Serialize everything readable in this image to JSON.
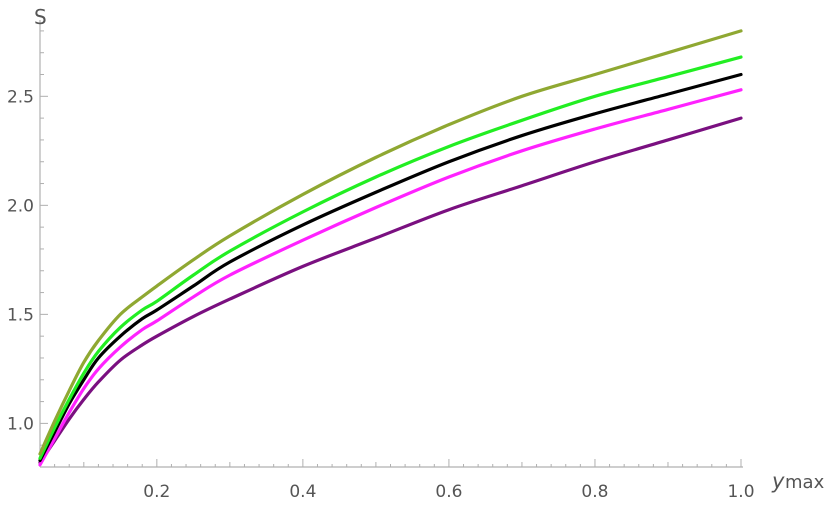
{
  "chart_data": {
    "type": "line",
    "title": "",
    "xlabel": "y",
    "xlabel_sub": "max",
    "ylabel": "S",
    "xlim": [
      0.04,
      1.0
    ],
    "ylim": [
      0.8,
      2.85
    ],
    "x_ticks": [
      0.2,
      0.4,
      0.6,
      0.8,
      1.0
    ],
    "x_tick_labels": [
      "0.2",
      "0.4",
      "0.6",
      "0.8",
      "1.0"
    ],
    "y_ticks": [
      1.0,
      1.5,
      2.0,
      2.5
    ],
    "y_tick_labels": [
      "1.0",
      "1.5",
      "2.0",
      "2.5"
    ],
    "grid": false,
    "legend": "none",
    "x": [
      0.04,
      0.06,
      0.08,
      0.1,
      0.12,
      0.15,
      0.18,
      0.2,
      0.25,
      0.3,
      0.4,
      0.5,
      0.6,
      0.7,
      0.8,
      0.9,
      1.0
    ],
    "series": [
      {
        "color": "#8fa832",
        "values": [
          0.86,
          1.01,
          1.15,
          1.28,
          1.38,
          1.5,
          1.58,
          1.63,
          1.75,
          1.86,
          2.05,
          2.22,
          2.37,
          2.5,
          2.6,
          2.7,
          2.8
        ]
      },
      {
        "color": "#22ee22",
        "values": [
          0.84,
          0.98,
          1.11,
          1.23,
          1.33,
          1.44,
          1.52,
          1.56,
          1.68,
          1.79,
          1.97,
          2.13,
          2.27,
          2.39,
          2.5,
          2.59,
          2.68
        ]
      },
      {
        "color": "#000000",
        "values": [
          0.83,
          0.96,
          1.09,
          1.2,
          1.3,
          1.4,
          1.48,
          1.52,
          1.63,
          1.74,
          1.91,
          2.06,
          2.2,
          2.32,
          2.42,
          2.51,
          2.6
        ]
      },
      {
        "color": "#ff22ff",
        "values": [
          0.81,
          0.93,
          1.05,
          1.16,
          1.25,
          1.35,
          1.43,
          1.47,
          1.58,
          1.68,
          1.84,
          1.99,
          2.13,
          2.25,
          2.35,
          2.44,
          2.53
        ]
      },
      {
        "color": "#7a1080",
        "values": [
          0.82,
          0.92,
          1.02,
          1.11,
          1.19,
          1.29,
          1.36,
          1.4,
          1.49,
          1.57,
          1.72,
          1.85,
          1.98,
          2.09,
          2.2,
          2.3,
          2.4
        ]
      }
    ]
  }
}
